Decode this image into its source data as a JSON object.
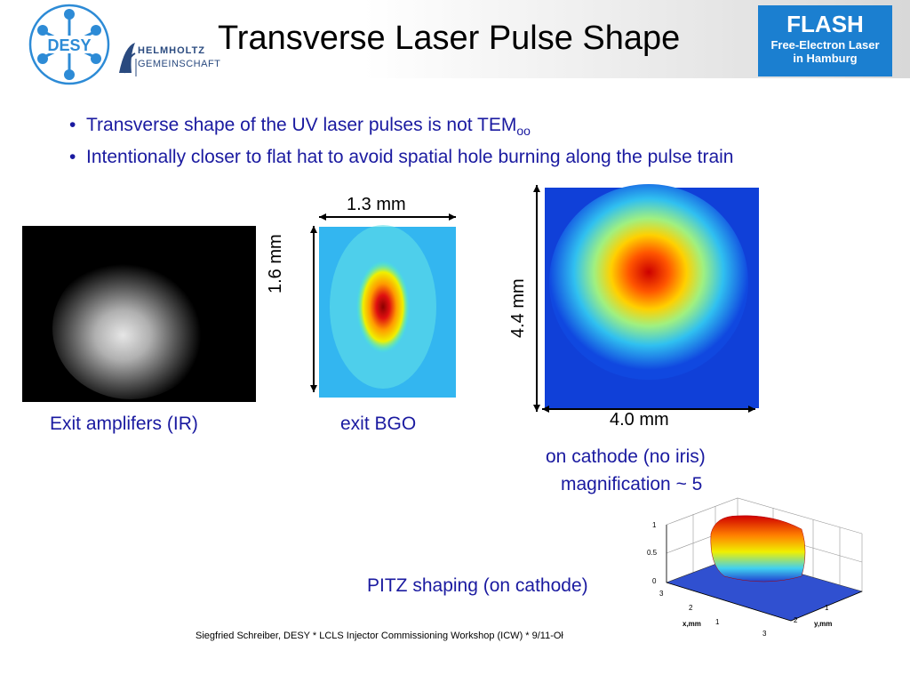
{
  "header": {
    "title": "Transverse Laser Pulse Shape",
    "desy_logo_text": "DESY",
    "helmholtz_line1": "HELMHOLTZ",
    "helmholtz_line2": "GEMEINSCHAFT",
    "flash_title": "FLASH",
    "flash_line1": "Free-Electron Laser",
    "flash_line2": "in Hamburg"
  },
  "bullets": {
    "b1_text": "Transverse shape of the UV laser pulses is not TEM",
    "b1_sub": "oo",
    "b2_text": "Intentionally closer to flat hat to avoid spatial hole burning along the pulse train"
  },
  "images": {
    "ir": {
      "caption": "Exit amplifers (IR)"
    },
    "bgo": {
      "caption": "exit BGO",
      "width_label": "1.3 mm",
      "height_label": "1.6 mm"
    },
    "cathode": {
      "caption_line1": "on cathode (no iris)",
      "caption_line2": "magnification ~ 5",
      "width_label": "4.0 mm",
      "height_label": "4.4 mm"
    }
  },
  "pitz": {
    "caption": "PITZ shaping (on cathode)",
    "z_ticks": [
      "1",
      "0.5",
      "0"
    ],
    "x_label": "x,mm",
    "y_label": "y,mm",
    "x_ticks": [
      "3",
      "2",
      "1"
    ],
    "y_ticks": [
      "1",
      "2",
      "3"
    ]
  },
  "footer": {
    "text": "Siegfried Schreiber, DESY  * LCLS Injector Commissioning Workshop (ICW) * 9/11-Oł"
  },
  "colors": {
    "text_blue": "#1a1aa0",
    "flash_blue": "#1b7fd0",
    "desy_blue": "#2d8bd6"
  }
}
